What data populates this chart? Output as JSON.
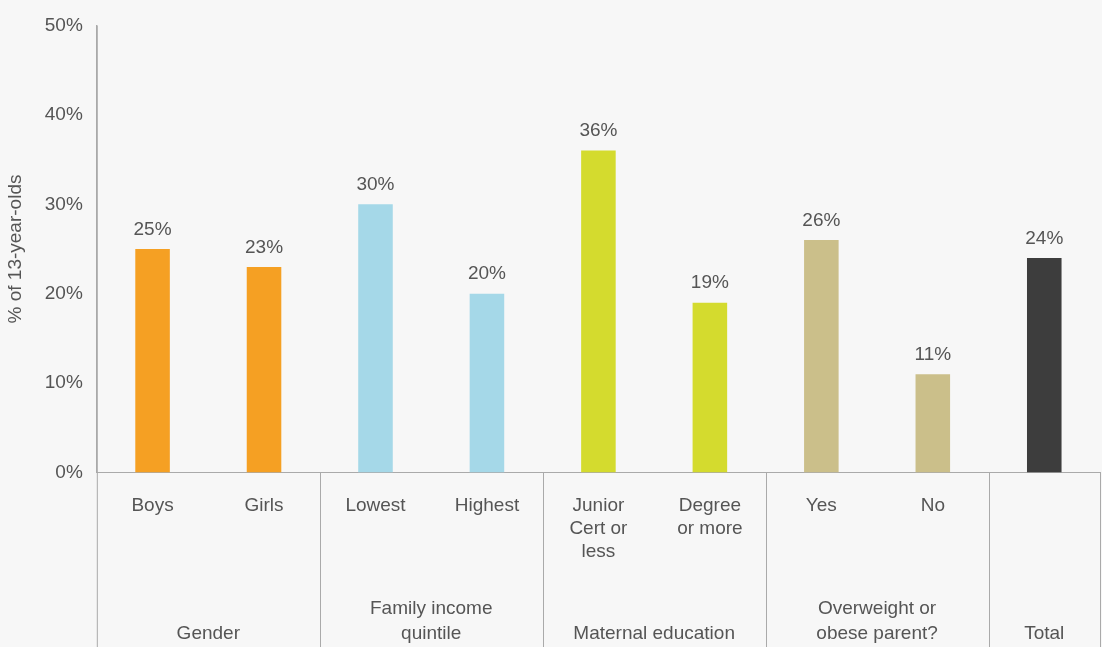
{
  "chart_data": {
    "type": "bar",
    "ylabel": "% of 13-year-olds",
    "categories": [
      "Boys",
      "Girls",
      "Lowest",
      "Highest",
      "Junior Cert or less",
      "Degree or more",
      "Yes",
      "No",
      null
    ],
    "values": [
      25,
      23,
      30,
      20,
      36,
      19,
      26,
      11,
      24
    ],
    "colors": [
      "#f5a023",
      "#f5a023",
      "#a5d8e8",
      "#a5d8e8",
      "#d4db2e",
      "#d4db2e",
      "#cbbf8a",
      "#cbbf8a",
      "#3d3d3d"
    ],
    "value_labels": [
      "25%",
      "23%",
      "30%",
      "20%",
      "36%",
      "19%",
      "26%",
      "11%",
      "24%"
    ],
    "ylim": [
      0,
      50
    ],
    "yticks": [
      {
        "value": 0,
        "label": "0%"
      },
      {
        "value": 10,
        "label": "10%"
      },
      {
        "value": 20,
        "label": "20%"
      },
      {
        "value": 30,
        "label": "30%"
      },
      {
        "value": 40,
        "label": "40%"
      },
      {
        "value": 50,
        "label": "50%"
      }
    ],
    "annotations": [
      "Gender",
      "Family income quintile",
      "Maternal education",
      "Overweight or obese parent?",
      "Total"
    ],
    "grid": false,
    "legend": false
  }
}
